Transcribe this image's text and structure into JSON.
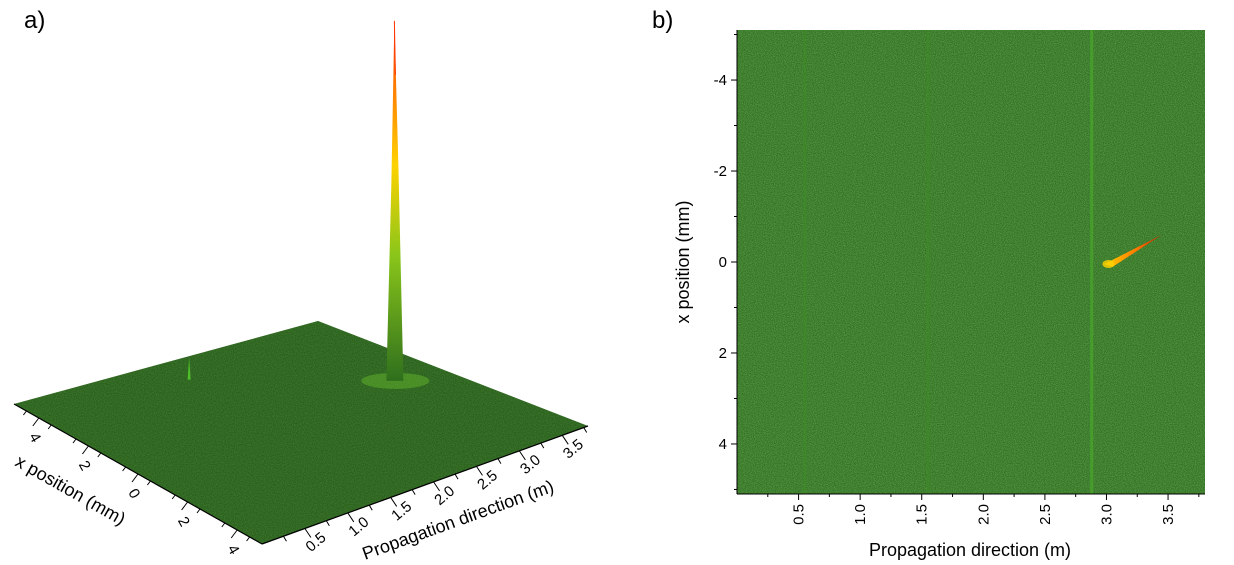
{
  "colors": {
    "background": "#ffffff",
    "noise_base": "#2f6f1d",
    "noise_light": "#4a9a2c",
    "noise_dark": "#173f10",
    "peak_base": "#8ac61a",
    "peak_mid": "#ffd200",
    "peak_top": "#ff3300",
    "axis": "#000000"
  },
  "chart_data": [
    {
      "panel_label": "a)",
      "type": "surface3d",
      "title": "",
      "x_axis": {
        "label": "Propagation direction (m)",
        "ticks": [
          0.5,
          1.0,
          1.5,
          2.0,
          2.5,
          3.0,
          3.5
        ],
        "tick_labels": [
          "0.5",
          "1.0",
          "1.5",
          "2.0",
          "2.5",
          "3.0",
          "3.5"
        ],
        "range": [
          0.0,
          3.8
        ]
      },
      "y_axis": {
        "label": "x position (mm)",
        "ticks": [
          -4,
          -2,
          0,
          2,
          4
        ],
        "tick_labels": [
          "4",
          "2",
          "0",
          "2",
          "4"
        ],
        "range": [
          -5,
          5
        ]
      },
      "features": [
        {
          "name": "main-peak",
          "propagation_m": 3.0,
          "x_position_mm": 0.0,
          "relative_height": 1.0
        },
        {
          "name": "secondary-spike",
          "propagation_m": 1.55,
          "x_position_mm": -3.3,
          "relative_height": 0.22
        }
      ]
    },
    {
      "panel_label": "b)",
      "type": "heatmap",
      "title": "",
      "x_axis": {
        "label": "Propagation direction (m)",
        "ticks": [
          0.5,
          1.0,
          1.5,
          2.0,
          2.5,
          3.0,
          3.5
        ],
        "tick_labels": [
          "0.5",
          "1.0",
          "1.5",
          "2.0",
          "2.5",
          "3.0",
          "3.5"
        ],
        "range": [
          0.0,
          3.8
        ]
      },
      "y_axis": {
        "label": "x position (mm)",
        "ticks": [
          -4,
          -2,
          0,
          2,
          4
        ],
        "tick_labels": [
          "-4",
          "-2",
          "0",
          "2",
          "4"
        ],
        "range": [
          -5.1,
          5.1
        ]
      },
      "vertical_streaks_m": [
        0.55,
        1.55,
        2.88
      ],
      "features": [
        {
          "name": "main-peak",
          "propagation_m": 3.0,
          "x_position_mm": 0.0,
          "tail_propagation_m": 3.45,
          "tail_x_position_mm": -0.6
        }
      ]
    }
  ]
}
